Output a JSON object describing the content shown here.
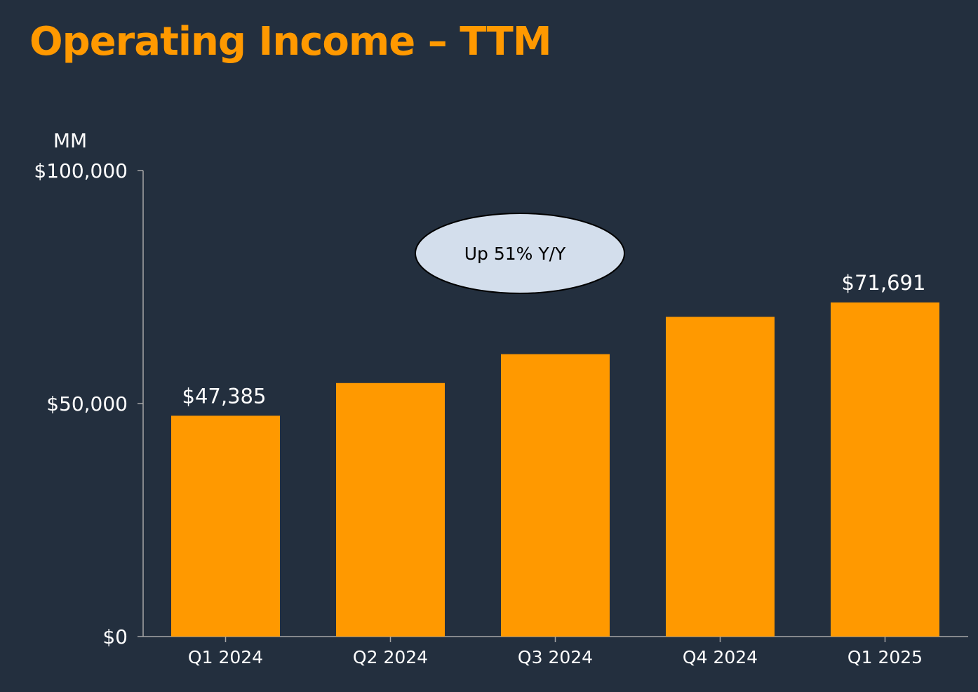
{
  "title": "Operating Income – TTM",
  "colors": {
    "background": "#232F3E",
    "title": "#FF9900",
    "bar": "#FF9900",
    "axis": "#A6A6A6",
    "text": "#FFFFFF",
    "callout_fill": "#D3DEEC",
    "callout_text": "#000000"
  },
  "callout": {
    "text": "Up 51% Y/Y"
  },
  "chart_data": {
    "type": "bar",
    "title": "Operating Income – TTM",
    "unit_label": "MM",
    "xlabel": "",
    "ylabel": "MM",
    "categories": [
      "Q1 2024",
      "Q2 2024",
      "Q3 2024",
      "Q4 2024",
      "Q1 2025"
    ],
    "values": [
      47385,
      54400,
      60600,
      68600,
      71691
    ],
    "data_labels": [
      "$47,385",
      "",
      "",
      "",
      "$71,691"
    ],
    "ylim": [
      0,
      100000
    ],
    "yticks": [
      0,
      50000,
      100000
    ],
    "ytick_labels": [
      "$0",
      "$50,000",
      "$100,000"
    ],
    "grid": false,
    "legend": "none"
  }
}
